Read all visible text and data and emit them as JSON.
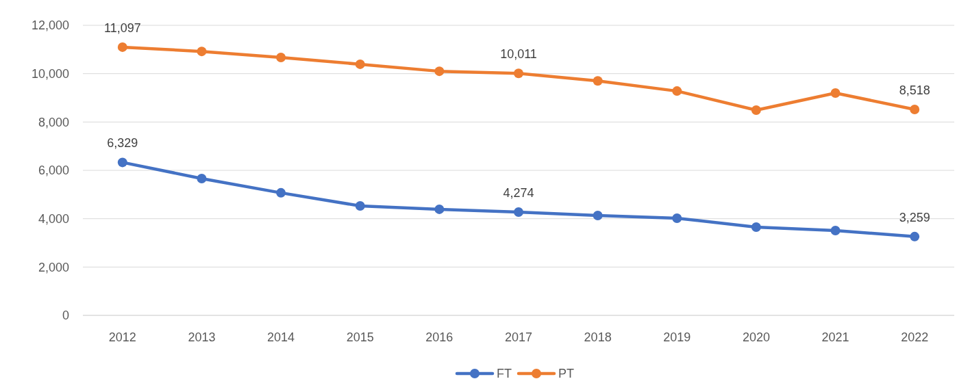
{
  "chart_data": {
    "type": "line",
    "categories": [
      "2012",
      "2013",
      "2014",
      "2015",
      "2016",
      "2017",
      "2018",
      "2019",
      "2020",
      "2021",
      "2022"
    ],
    "ylim": [
      0,
      12000
    ],
    "yticks": [
      {
        "value": 0,
        "label": "0"
      },
      {
        "value": 2000,
        "label": "2,000"
      },
      {
        "value": 4000,
        "label": "4,000"
      },
      {
        "value": 6000,
        "label": "6,000"
      },
      {
        "value": 8000,
        "label": "8,000"
      },
      {
        "value": 10000,
        "label": "10,000"
      },
      {
        "value": 12000,
        "label": "12,000"
      }
    ],
    "grid": "y",
    "legend": "bottom",
    "marker": "circle",
    "line_style": "solid",
    "series": [
      {
        "name": "FT",
        "color": "#4472c4",
        "values": [
          6329,
          5660,
          5070,
          4530,
          4390,
          4274,
          4130,
          4020,
          3650,
          3510,
          3259
        ],
        "value_labels": [
          "6,329",
          null,
          null,
          null,
          null,
          "4,274",
          null,
          null,
          null,
          null,
          "3,259"
        ]
      },
      {
        "name": "PT",
        "color": "#ed7d31",
        "values": [
          11097,
          10920,
          10670,
          10390,
          10100,
          10011,
          9700,
          9280,
          8490,
          9200,
          8518
        ],
        "value_labels": [
          "11,097",
          null,
          null,
          null,
          null,
          "10,011",
          null,
          null,
          null,
          null,
          "8,518"
        ]
      }
    ]
  }
}
